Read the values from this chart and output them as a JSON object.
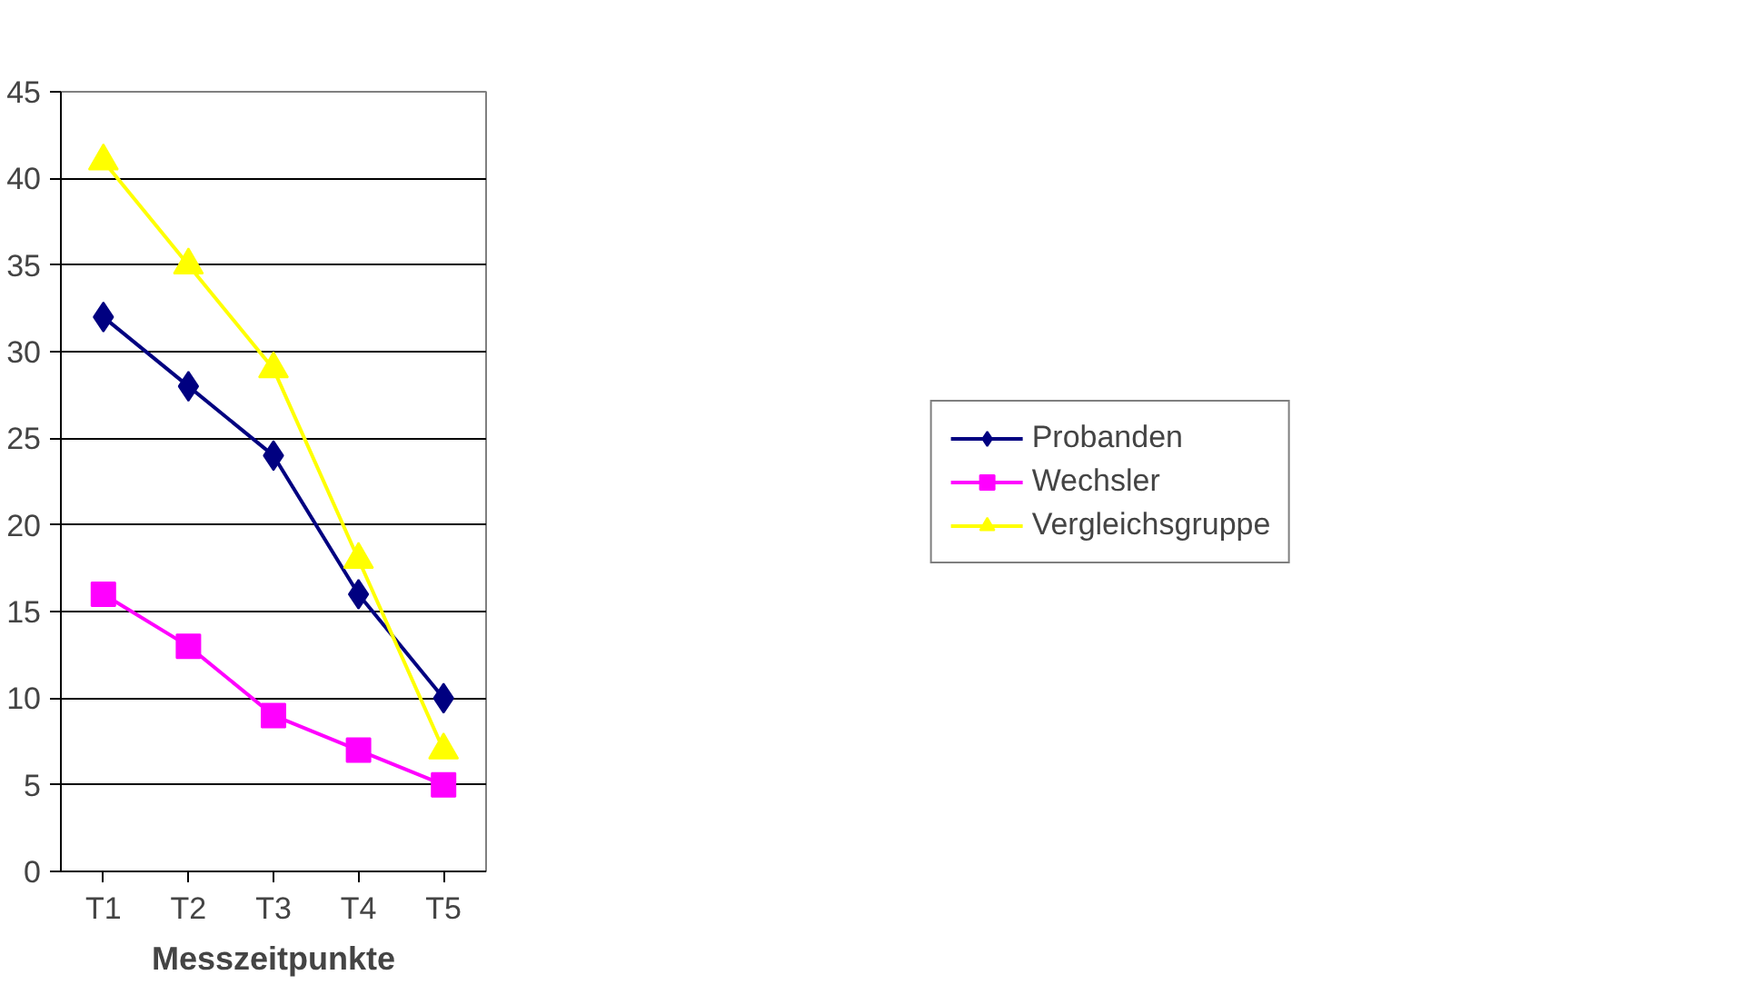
{
  "chart_data": {
    "type": "line",
    "xlabel": "Messzeitpunkte",
    "categories": [
      "T1",
      "T2",
      "T3",
      "T4",
      "T5"
    ],
    "series": [
      {
        "name": "Probanden",
        "color": "#000080",
        "marker": "diamond",
        "values": [
          32,
          28,
          24,
          16,
          10
        ]
      },
      {
        "name": "Wechsler",
        "color": "#ff00ff",
        "marker": "square",
        "values": [
          16,
          13,
          9,
          7,
          5
        ]
      },
      {
        "name": "Vergleichsgruppe",
        "color": "#ffff00",
        "marker": "triangle",
        "values": [
          41,
          35,
          29,
          18,
          7
        ]
      }
    ],
    "ylim": [
      0,
      45
    ],
    "yticks": [
      0,
      5,
      10,
      15,
      20,
      25,
      30,
      35,
      40,
      45
    ],
    "grid": "y",
    "legend": "right"
  }
}
